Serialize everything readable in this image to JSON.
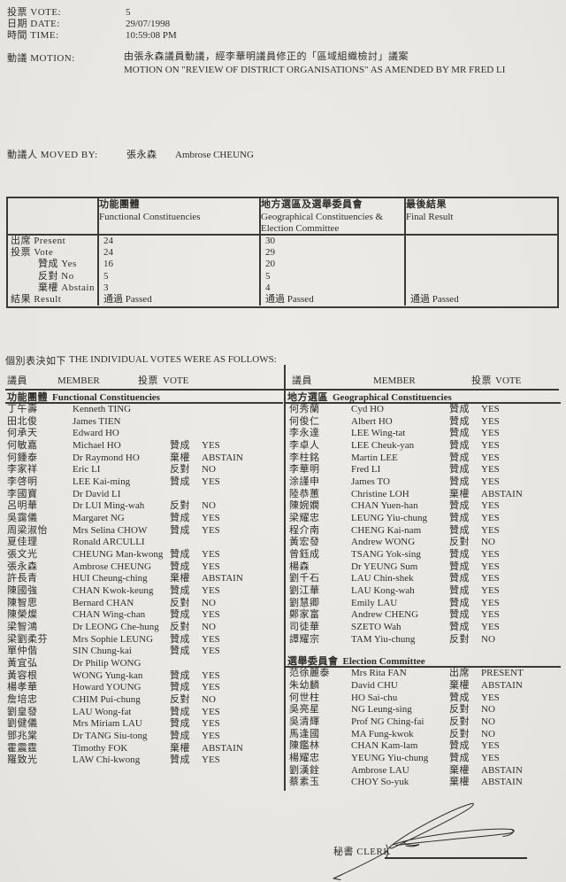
{
  "header": {
    "info": [
      {
        "label": "投票 VOTE:",
        "value": "5"
      },
      {
        "label": "日期 DATE:",
        "value": "29/07/1998"
      },
      {
        "label": "時間 TIME:",
        "value": "10:59:08 PM"
      }
    ],
    "motion": {
      "label": "動議 MOTION:",
      "text_cn": "由張永森議員動議，經李華明議員修正的「區域組織檢討」議案",
      "text_en": "MOTION ON \"REVIEW OF DISTRICT ORGANISATIONS\" AS AMENDED BY MR FRED LI"
    },
    "moved_by": {
      "label": "動議人 MOVED BY:",
      "name_cn": "張永森",
      "name_en": "Ambrose CHEUNG"
    }
  },
  "summary": {
    "col_headers": [
      {
        "cn": "功能團體",
        "en": "Functional Constituencies"
      },
      {
        "cn": "地方選區及選舉委員會",
        "en": "Geographical Constituencies & Election Committee"
      },
      {
        "cn": "最後結果",
        "en": "Final Result"
      }
    ],
    "rows": [
      {
        "label": "出席 Present",
        "indent": false,
        "fc": "24",
        "gc": "30",
        "final": ""
      },
      {
        "label": "投票 Vote",
        "indent": false,
        "fc": "24",
        "gc": "29",
        "final": ""
      },
      {
        "label": "贊成 Yes",
        "indent": true,
        "fc": "16",
        "gc": "20",
        "final": ""
      },
      {
        "label": "反對 No",
        "indent": true,
        "fc": "5",
        "gc": "5",
        "final": ""
      },
      {
        "label": "棄權 Abstain",
        "indent": true,
        "fc": "3",
        "gc": "4",
        "final": ""
      },
      {
        "label": "結果 Result",
        "indent": false,
        "fc": "通過 Passed",
        "gc": "通過 Passed",
        "final": "通過 Passed"
      }
    ]
  },
  "individual": {
    "title_cn": "個別表決如下",
    "title_en": "THE INDIVIDUAL VOTES WERE AS FOLLOWS:",
    "col_headers": {
      "member_cn": "議員",
      "member_en": "MEMBER",
      "vote_cn": "投票",
      "vote_en": "VOTE"
    },
    "columns": [
      {
        "sections": [
          {
            "cn": "功能團體",
            "en": "Functional Constituencies",
            "rows": [
              {
                "cn": "丁午壽",
                "en": "Kenneth TING",
                "vote_cn": "",
                "vote_en": ""
              },
              {
                "cn": "田北俊",
                "en": "James TIEN",
                "vote_cn": "",
                "vote_en": ""
              },
              {
                "cn": "何承天",
                "en": "Edward HO",
                "vote_cn": "",
                "vote_en": ""
              },
              {
                "cn": "何敏嘉",
                "en": "Michael HO",
                "vote_cn": "贊成",
                "vote_en": "YES"
              },
              {
                "cn": "何鍾泰",
                "en": "Dr Raymond HO",
                "vote_cn": "棄權",
                "vote_en": "ABSTAIN"
              },
              {
                "cn": "李家祥",
                "en": "Eric LI",
                "vote_cn": "反對",
                "vote_en": "NO"
              },
              {
                "cn": "李啓明",
                "en": "LEE Kai-ming",
                "vote_cn": "贊成",
                "vote_en": "YES"
              },
              {
                "cn": "李國寶",
                "en": "Dr David LI",
                "vote_cn": "",
                "vote_en": ""
              },
              {
                "cn": "呂明華",
                "en": "Dr LUI Ming-wah",
                "vote_cn": "反對",
                "vote_en": "NO"
              },
              {
                "cn": "吳靄儀",
                "en": "Margaret NG",
                "vote_cn": "贊成",
                "vote_en": "YES"
              },
              {
                "cn": "周梁淑怡",
                "en": "Mrs Selina CHOW",
                "vote_cn": "贊成",
                "vote_en": "YES"
              },
              {
                "cn": "夏佳理",
                "en": "Ronald ARCULLI",
                "vote_cn": "",
                "vote_en": ""
              },
              {
                "cn": "張文光",
                "en": "CHEUNG Man-kwong",
                "vote_cn": "贊成",
                "vote_en": "YES"
              },
              {
                "cn": "張永森",
                "en": "Ambrose CHEUNG",
                "vote_cn": "贊成",
                "vote_en": "YES"
              },
              {
                "cn": "許長青",
                "en": "HUI Cheung-ching",
                "vote_cn": "棄權",
                "vote_en": "ABSTAIN"
              },
              {
                "cn": "陳國強",
                "en": "CHAN Kwok-keung",
                "vote_cn": "贊成",
                "vote_en": "YES"
              },
              {
                "cn": "陳智思",
                "en": "Bernard CHAN",
                "vote_cn": "反對",
                "vote_en": "NO"
              },
              {
                "cn": "陳榮燦",
                "en": "CHAN Wing-chan",
                "vote_cn": "贊成",
                "vote_en": "YES"
              },
              {
                "cn": "梁智鴻",
                "en": "Dr LEONG Che-hung",
                "vote_cn": "反對",
                "vote_en": "NO"
              },
              {
                "cn": "梁劉柔芬",
                "en": "Mrs Sophie LEUNG",
                "vote_cn": "贊成",
                "vote_en": "YES"
              },
              {
                "cn": "單仲偕",
                "en": "SIN Chung-kai",
                "vote_cn": "贊成",
                "vote_en": "YES"
              },
              {
                "cn": "黃宜弘",
                "en": "Dr Philip WONG",
                "vote_cn": "",
                "vote_en": ""
              },
              {
                "cn": "黃容根",
                "en": "WONG Yung-kan",
                "vote_cn": "贊成",
                "vote_en": "YES"
              },
              {
                "cn": "楊孝華",
                "en": "Howard YOUNG",
                "vote_cn": "贊成",
                "vote_en": "YES"
              },
              {
                "cn": "詹培忠",
                "en": "CHIM Pui-chung",
                "vote_cn": "反對",
                "vote_en": "NO"
              },
              {
                "cn": "劉皇發",
                "en": "LAU Wong-fat",
                "vote_cn": "贊成",
                "vote_en": "YES"
              },
              {
                "cn": "劉健儀",
                "en": "Mrs Miriam LAU",
                "vote_cn": "贊成",
                "vote_en": "YES"
              },
              {
                "cn": "鄧兆棠",
                "en": "Dr TANG Siu-tong",
                "vote_cn": "贊成",
                "vote_en": "YES"
              },
              {
                "cn": "霍震霆",
                "en": "Timothy FOK",
                "vote_cn": "棄權",
                "vote_en": "ABSTAIN"
              },
              {
                "cn": "羅致光",
                "en": "LAW Chi-kwong",
                "vote_cn": "贊成",
                "vote_en": "YES"
              }
            ]
          }
        ]
      },
      {
        "sections": [
          {
            "cn": "地方選區",
            "en": "Geographical Constituencies",
            "rows": [
              {
                "cn": "何秀蘭",
                "en": "Cyd HO",
                "vote_cn": "贊成",
                "vote_en": "YES"
              },
              {
                "cn": "何俊仁",
                "en": "Albert HO",
                "vote_cn": "贊成",
                "vote_en": "YES"
              },
              {
                "cn": "李永達",
                "en": "LEE Wing-tat",
                "vote_cn": "贊成",
                "vote_en": "YES"
              },
              {
                "cn": "李卓人",
                "en": "LEE Cheuk-yan",
                "vote_cn": "贊成",
                "vote_en": "YES"
              },
              {
                "cn": "李柱銘",
                "en": "Martin LEE",
                "vote_cn": "贊成",
                "vote_en": "YES"
              },
              {
                "cn": "李華明",
                "en": "Fred LI",
                "vote_cn": "贊成",
                "vote_en": "YES"
              },
              {
                "cn": "涂謹申",
                "en": "James TO",
                "vote_cn": "贊成",
                "vote_en": "YES"
              },
              {
                "cn": "陸恭蕙",
                "en": "Christine LOH",
                "vote_cn": "棄權",
                "vote_en": "ABSTAIN"
              },
              {
                "cn": "陳婉嫻",
                "en": "CHAN Yuen-han",
                "vote_cn": "贊成",
                "vote_en": "YES"
              },
              {
                "cn": "梁耀忠",
                "en": "LEUNG Yiu-chung",
                "vote_cn": "贊成",
                "vote_en": "YES"
              },
              {
                "cn": "程介南",
                "en": "CHENG Kai-nam",
                "vote_cn": "贊成",
                "vote_en": "YES"
              },
              {
                "cn": "黃宏發",
                "en": "Andrew WONG",
                "vote_cn": "反對",
                "vote_en": "NO"
              },
              {
                "cn": "曾鈺成",
                "en": "TSANG Yok-sing",
                "vote_cn": "贊成",
                "vote_en": "YES"
              },
              {
                "cn": "楊森",
                "en": "Dr YEUNG Sum",
                "vote_cn": "贊成",
                "vote_en": "YES"
              },
              {
                "cn": "劉千石",
                "en": "LAU Chin-shek",
                "vote_cn": "贊成",
                "vote_en": "YES"
              },
              {
                "cn": "劉江華",
                "en": "LAU Kong-wah",
                "vote_cn": "贊成",
                "vote_en": "YES"
              },
              {
                "cn": "劉慧卿",
                "en": "Emily LAU",
                "vote_cn": "贊成",
                "vote_en": "YES"
              },
              {
                "cn": "鄭家富",
                "en": "Andrew CHENG",
                "vote_cn": "贊成",
                "vote_en": "YES"
              },
              {
                "cn": "司徒華",
                "en": "SZETO Wah",
                "vote_cn": "贊成",
                "vote_en": "YES"
              },
              {
                "cn": "譚耀宗",
                "en": "TAM Yiu-chung",
                "vote_cn": "反對",
                "vote_en": "NO"
              }
            ]
          },
          {
            "cn": "選舉委員會",
            "en": "Election Committee",
            "rows": [
              {
                "cn": "范徐麗泰",
                "en": "Mrs Rita FAN",
                "vote_cn": "出席",
                "vote_en": "PRESENT"
              },
              {
                "cn": "朱幼麟",
                "en": "David CHU",
                "vote_cn": "棄權",
                "vote_en": "ABSTAIN"
              },
              {
                "cn": "何世柱",
                "en": "HO Sai-chu",
                "vote_cn": "贊成",
                "vote_en": "YES"
              },
              {
                "cn": "吳亮星",
                "en": "NG Leung-sing",
                "vote_cn": "反對",
                "vote_en": "NO"
              },
              {
                "cn": "吳清輝",
                "en": "Prof NG Ching-fai",
                "vote_cn": "反對",
                "vote_en": "NO"
              },
              {
                "cn": "馬逢國",
                "en": "MA Fung-kwok",
                "vote_cn": "反對",
                "vote_en": "NO"
              },
              {
                "cn": "陳鑑林",
                "en": "CHAN Kam-lam",
                "vote_cn": "贊成",
                "vote_en": "YES"
              },
              {
                "cn": "楊耀忠",
                "en": "YEUNG Yiu-chung",
                "vote_cn": "贊成",
                "vote_en": "YES"
              },
              {
                "cn": "劉漢銓",
                "en": "Ambrose LAU",
                "vote_cn": "棄權",
                "vote_en": "ABSTAIN"
              },
              {
                "cn": "蔡素玉",
                "en": "CHOY So-yuk",
                "vote_cn": "棄權",
                "vote_en": "ABSTAIN"
              }
            ]
          }
        ]
      }
    ]
  },
  "footer": {
    "clerk_label": "秘書 CLERK"
  }
}
